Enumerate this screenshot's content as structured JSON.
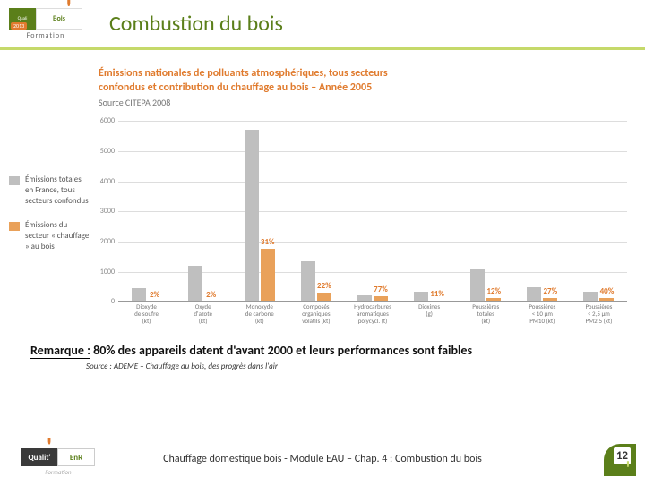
{
  "header": {
    "logo": {
      "brand_left": "Quali",
      "brand_right": "Bois",
      "year": "2013",
      "formation": "Formation"
    },
    "title": "Combustion du bois"
  },
  "chart": {
    "type": "bar",
    "title_line1": "Émissions nationales de polluants atmosphériques, tous secteurs",
    "title_line2": "confondus et contribution du chauffage au bois – Année 2005",
    "source": "Source CITEPA 2008",
    "title_color": "#e07b2e",
    "title_fontsize": 12,
    "y": {
      "max": 6000,
      "ticks": [
        0,
        1000,
        2000,
        3000,
        4000,
        5000,
        6000
      ],
      "grid_color": "#ddd"
    },
    "colors": {
      "total": "#bfbfbf",
      "wood": "#e9a15a"
    },
    "legend": {
      "total": "Émissions totales en France, tous secteurs confondus",
      "wood": "Émissions du secteur « chauffage » au bois"
    },
    "categories": [
      {
        "label_l1": "Dioxyde",
        "label_l2": "de soufre",
        "label_l3": "(kt)",
        "total": 470,
        "wood": 9,
        "pct": "2%"
      },
      {
        "label_l1": "Oxyde",
        "label_l2": "d'azote",
        "label_l3": "(kt)",
        "total": 1210,
        "wood": 24,
        "pct": "2%"
      },
      {
        "label_l1": "Monoxyde",
        "label_l2": "de carbone",
        "label_l3": "(kt)",
        "total": 5700,
        "wood": 1770,
        "pct": "31%"
      },
      {
        "label_l1": "Composés",
        "label_l2": "organiques",
        "label_l3": "volatils (kt)",
        "total": 1350,
        "wood": 300,
        "pct": "22%"
      },
      {
        "label_l1": "Hydrocarbures",
        "label_l2": "aromatiques",
        "label_l3": "polycycl. (t)",
        "total": 230,
        "wood": 177,
        "pct": "77%"
      },
      {
        "label_l1": "Dioxines",
        "label_l2": "(g)",
        "label_l3": "",
        "total": 350,
        "wood": 39,
        "pct": "11%"
      },
      {
        "label_l1": "Poussières",
        "label_l2": "totales",
        "label_l3": "(kt)",
        "total": 1070,
        "wood": 128,
        "pct": "12%"
      },
      {
        "label_l1": "Poussières",
        "label_l2": "< 10 µm",
        "label_l3": "PM10 (kt)",
        "total": 500,
        "wood": 135,
        "pct": "27%"
      },
      {
        "label_l1": "Poussières",
        "label_l2": "< 2,5 µm",
        "label_l3": "PM2,5 (kt)",
        "total": 340,
        "wood": 136,
        "pct": "40%"
      }
    ]
  },
  "remark": {
    "lead": "Remarque :",
    "text": " 80% des appareils datent d'avant 2000 et leurs performances sont faibles"
  },
  "source_note": "Source : ADEME – Chauffage au bois, des progrès dans l'air",
  "footer": {
    "logo": {
      "left": "Qualit'",
      "right": "EnR",
      "sub": "Formation"
    },
    "text": "Chauffage domestique bois - Module EAU – Chap. 4 : Combustion du bois",
    "page": "12"
  }
}
